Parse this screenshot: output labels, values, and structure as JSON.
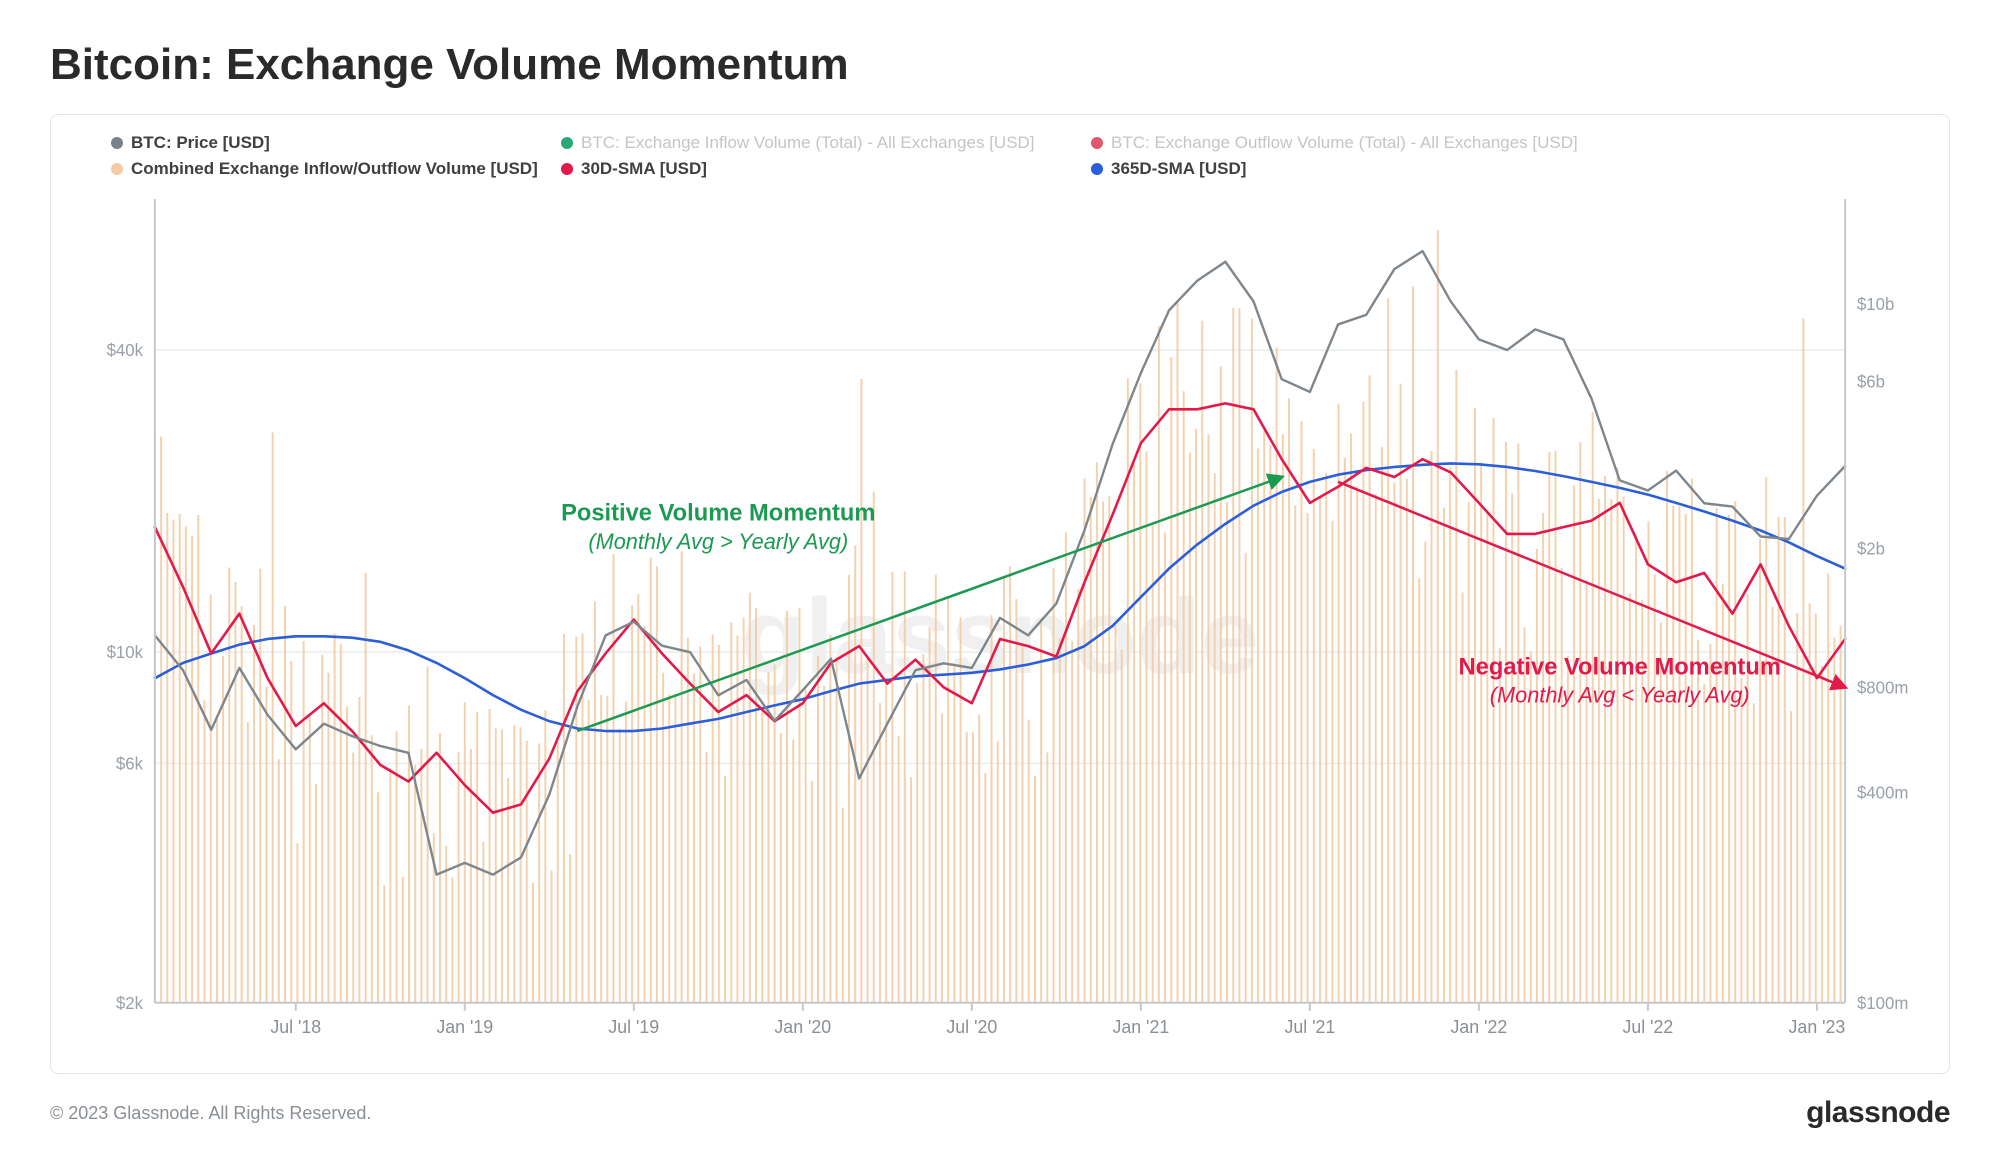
{
  "title": "Bitcoin: Exchange Volume Momentum",
  "footer_copyright": "© 2023 Glassnode. All Rights Reserved.",
  "brand": "glassnode",
  "watermark": "glassnode",
  "chart": {
    "type": "line+bar",
    "background_color": "#ffffff",
    "border_color": "#e6e6e6",
    "axis_color": "#c5c8cc",
    "grid_color": "#f0f1f2",
    "tick_label_color": "#9aa0a6",
    "x_range_months": [
      "2018-02",
      "2018-07",
      "2019-01",
      "2019-07",
      "2020-01",
      "2020-07",
      "2021-01",
      "2021-07",
      "2022-01",
      "2022-07",
      "2023-01",
      "2023-02"
    ],
    "x_ticks": [
      {
        "m": "2018-07",
        "label": "Jul '18"
      },
      {
        "m": "2019-01",
        "label": "Jan '19"
      },
      {
        "m": "2019-07",
        "label": "Jul '19"
      },
      {
        "m": "2020-01",
        "label": "Jan '20"
      },
      {
        "m": "2020-07",
        "label": "Jul '20"
      },
      {
        "m": "2021-01",
        "label": "Jan '21"
      },
      {
        "m": "2021-07",
        "label": "Jul '21"
      },
      {
        "m": "2022-01",
        "label": "Jan '22"
      },
      {
        "m": "2022-07",
        "label": "Jul '22"
      },
      {
        "m": "2023-01",
        "label": "Jan '23"
      }
    ],
    "y_left": {
      "scale": "log",
      "min": 2000,
      "max": 80000,
      "ticks": [
        {
          "v": 2000,
          "l": "$2k"
        },
        {
          "v": 6000,
          "l": "$6k"
        },
        {
          "v": 10000,
          "l": "$10k"
        },
        {
          "v": 40000,
          "l": "$40k"
        }
      ]
    },
    "y_right": {
      "scale": "log",
      "min": 100000000,
      "max": 20000000000,
      "ticks": [
        {
          "v": 100000000,
          "l": "$100m"
        },
        {
          "v": 400000000,
          "l": "$400m"
        },
        {
          "v": 800000000,
          "l": "$800m"
        },
        {
          "v": 2000000000,
          "l": "$2b"
        },
        {
          "v": 6000000000,
          "l": "$6b"
        },
        {
          "v": 10000000000,
          "l": "$10b"
        }
      ]
    },
    "legend": [
      {
        "key": "price",
        "label": "BTC: Price [USD]",
        "color": "#7a8289",
        "bold": true
      },
      {
        "key": "inflow",
        "label": "BTC: Exchange Inflow Volume (Total) - All Exchanges [USD]",
        "color": "#2aa876",
        "faded": true
      },
      {
        "key": "outflow",
        "label": "BTC: Exchange Outflow Volume (Total) - All Exchanges [USD]",
        "color": "#e0576e",
        "faded": true
      },
      {
        "key": "combined",
        "label": "Combined Exchange Inflow/Outflow Volume [USD]",
        "color": "#f5c9a1",
        "bold": true
      },
      {
        "key": "sma30",
        "label": "30D-SMA [USD]",
        "color": "#e3194b",
        "bold": true
      },
      {
        "key": "sma365",
        "label": "365D-SMA [USD]",
        "color": "#2b5fd9",
        "bold": true
      }
    ],
    "colors": {
      "price": "#7e868c",
      "bars": "#f3caa0",
      "sma30": "#e3194b",
      "sma365": "#2b5fd9"
    },
    "line_width": {
      "price": 2.4,
      "sma30": 2.6,
      "sma365": 2.6
    },
    "series": {
      "price": [
        [
          "2018-02",
          10800
        ],
        [
          "2018-03",
          9200
        ],
        [
          "2018-04",
          7000
        ],
        [
          "2018-05",
          9300
        ],
        [
          "2018-06",
          7500
        ],
        [
          "2018-07",
          6400
        ],
        [
          "2018-08",
          7200
        ],
        [
          "2018-09",
          6800
        ],
        [
          "2018-10",
          6500
        ],
        [
          "2018-11",
          6300
        ],
        [
          "2018-12",
          3600
        ],
        [
          "2019-01",
          3800
        ],
        [
          "2019-02",
          3600
        ],
        [
          "2019-03",
          3900
        ],
        [
          "2019-04",
          5200
        ],
        [
          "2019-05",
          7800
        ],
        [
          "2019-06",
          10800
        ],
        [
          "2019-07",
          11500
        ],
        [
          "2019-08",
          10300
        ],
        [
          "2019-09",
          10000
        ],
        [
          "2019-10",
          8200
        ],
        [
          "2019-11",
          8800
        ],
        [
          "2019-12",
          7300
        ],
        [
          "2020-01",
          8400
        ],
        [
          "2020-02",
          9700
        ],
        [
          "2020-03",
          5600
        ],
        [
          "2020-04",
          7200
        ],
        [
          "2020-05",
          9200
        ],
        [
          "2020-06",
          9500
        ],
        [
          "2020-07",
          9300
        ],
        [
          "2020-08",
          11700
        ],
        [
          "2020-09",
          10800
        ],
        [
          "2020-10",
          12500
        ],
        [
          "2020-11",
          17500
        ],
        [
          "2020-12",
          26000
        ],
        [
          "2021-01",
          36000
        ],
        [
          "2021-02",
          48000
        ],
        [
          "2021-03",
          55000
        ],
        [
          "2021-04",
          60000
        ],
        [
          "2021-05",
          50000
        ],
        [
          "2021-06",
          35000
        ],
        [
          "2021-07",
          33000
        ],
        [
          "2021-08",
          45000
        ],
        [
          "2021-09",
          47000
        ],
        [
          "2021-10",
          58000
        ],
        [
          "2021-11",
          63000
        ],
        [
          "2021-12",
          50000
        ],
        [
          "2022-01",
          42000
        ],
        [
          "2022-02",
          40000
        ],
        [
          "2022-03",
          44000
        ],
        [
          "2022-04",
          42000
        ],
        [
          "2022-05",
          32000
        ],
        [
          "2022-06",
          22000
        ],
        [
          "2022-07",
          21000
        ],
        [
          "2022-08",
          23000
        ],
        [
          "2022-09",
          19800
        ],
        [
          "2022-10",
          19500
        ],
        [
          "2022-11",
          17000
        ],
        [
          "2022-12",
          16800
        ],
        [
          "2023-01",
          20500
        ],
        [
          "2023-02",
          23500
        ]
      ],
      "sma30": [
        [
          "2018-02",
          2300000000
        ],
        [
          "2018-03",
          1550000000
        ],
        [
          "2018-04",
          1000000000
        ],
        [
          "2018-05",
          1300000000
        ],
        [
          "2018-06",
          850000000
        ],
        [
          "2018-07",
          620000000
        ],
        [
          "2018-08",
          720000000
        ],
        [
          "2018-09",
          600000000
        ],
        [
          "2018-10",
          480000000
        ],
        [
          "2018-11",
          430000000
        ],
        [
          "2018-12",
          520000000
        ],
        [
          "2019-01",
          420000000
        ],
        [
          "2019-02",
          350000000
        ],
        [
          "2019-03",
          370000000
        ],
        [
          "2019-04",
          500000000
        ],
        [
          "2019-05",
          780000000
        ],
        [
          "2019-06",
          1000000000
        ],
        [
          "2019-07",
          1250000000
        ],
        [
          "2019-08",
          1000000000
        ],
        [
          "2019-09",
          820000000
        ],
        [
          "2019-10",
          680000000
        ],
        [
          "2019-11",
          760000000
        ],
        [
          "2019-12",
          640000000
        ],
        [
          "2020-01",
          720000000
        ],
        [
          "2020-02",
          940000000
        ],
        [
          "2020-03",
          1050000000
        ],
        [
          "2020-04",
          820000000
        ],
        [
          "2020-05",
          960000000
        ],
        [
          "2020-06",
          800000000
        ],
        [
          "2020-07",
          720000000
        ],
        [
          "2020-08",
          1100000000
        ],
        [
          "2020-09",
          1050000000
        ],
        [
          "2020-10",
          980000000
        ],
        [
          "2020-11",
          1600000000
        ],
        [
          "2020-12",
          2500000000
        ],
        [
          "2021-01",
          4000000000
        ],
        [
          "2021-02",
          5000000000
        ],
        [
          "2021-03",
          5000000000
        ],
        [
          "2021-04",
          5200000000
        ],
        [
          "2021-05",
          5000000000
        ],
        [
          "2021-06",
          3600000000
        ],
        [
          "2021-07",
          2700000000
        ],
        [
          "2021-08",
          3000000000
        ],
        [
          "2021-09",
          3400000000
        ],
        [
          "2021-10",
          3200000000
        ],
        [
          "2021-11",
          3600000000
        ],
        [
          "2021-12",
          3300000000
        ],
        [
          "2022-01",
          2700000000
        ],
        [
          "2022-02",
          2200000000
        ],
        [
          "2022-03",
          2200000000
        ],
        [
          "2022-04",
          2300000000
        ],
        [
          "2022-05",
          2400000000
        ],
        [
          "2022-06",
          2700000000
        ],
        [
          "2022-07",
          1800000000
        ],
        [
          "2022-08",
          1600000000
        ],
        [
          "2022-09",
          1700000000
        ],
        [
          "2022-10",
          1300000000
        ],
        [
          "2022-11",
          1800000000
        ],
        [
          "2022-12",
          1200000000
        ],
        [
          "2023-01",
          850000000
        ],
        [
          "2023-02",
          1100000000
        ]
      ],
      "sma365": [
        [
          "2018-02",
          850000000
        ],
        [
          "2018-03",
          940000000
        ],
        [
          "2018-04",
          1000000000
        ],
        [
          "2018-05",
          1060000000
        ],
        [
          "2018-06",
          1100000000
        ],
        [
          "2018-07",
          1120000000
        ],
        [
          "2018-08",
          1120000000
        ],
        [
          "2018-09",
          1110000000
        ],
        [
          "2018-10",
          1080000000
        ],
        [
          "2018-11",
          1020000000
        ],
        [
          "2018-12",
          940000000
        ],
        [
          "2019-01",
          850000000
        ],
        [
          "2019-02",
          760000000
        ],
        [
          "2019-03",
          690000000
        ],
        [
          "2019-04",
          640000000
        ],
        [
          "2019-05",
          610000000
        ],
        [
          "2019-06",
          600000000
        ],
        [
          "2019-07",
          600000000
        ],
        [
          "2019-08",
          610000000
        ],
        [
          "2019-09",
          630000000
        ],
        [
          "2019-10",
          650000000
        ],
        [
          "2019-11",
          680000000
        ],
        [
          "2019-12",
          710000000
        ],
        [
          "2020-01",
          740000000
        ],
        [
          "2020-02",
          780000000
        ],
        [
          "2020-03",
          820000000
        ],
        [
          "2020-04",
          840000000
        ],
        [
          "2020-05",
          860000000
        ],
        [
          "2020-06",
          870000000
        ],
        [
          "2020-07",
          880000000
        ],
        [
          "2020-08",
          900000000
        ],
        [
          "2020-09",
          930000000
        ],
        [
          "2020-10",
          970000000
        ],
        [
          "2020-11",
          1050000000
        ],
        [
          "2020-12",
          1200000000
        ],
        [
          "2021-01",
          1450000000
        ],
        [
          "2021-02",
          1750000000
        ],
        [
          "2021-03",
          2050000000
        ],
        [
          "2021-04",
          2350000000
        ],
        [
          "2021-05",
          2650000000
        ],
        [
          "2021-06",
          2900000000
        ],
        [
          "2021-07",
          3100000000
        ],
        [
          "2021-08",
          3250000000
        ],
        [
          "2021-09",
          3350000000
        ],
        [
          "2021-10",
          3420000000
        ],
        [
          "2021-11",
          3470000000
        ],
        [
          "2021-12",
          3500000000
        ],
        [
          "2022-01",
          3480000000
        ],
        [
          "2022-02",
          3420000000
        ],
        [
          "2022-03",
          3330000000
        ],
        [
          "2022-04",
          3220000000
        ],
        [
          "2022-05",
          3100000000
        ],
        [
          "2022-06",
          2980000000
        ],
        [
          "2022-07",
          2850000000
        ],
        [
          "2022-08",
          2700000000
        ],
        [
          "2022-09",
          2550000000
        ],
        [
          "2022-10",
          2400000000
        ],
        [
          "2022-11",
          2250000000
        ],
        [
          "2022-12",
          2080000000
        ],
        [
          "2023-01",
          1900000000
        ],
        [
          "2023-02",
          1750000000
        ]
      ]
    },
    "bars_seed": 42,
    "annotations": {
      "positive": {
        "title": "Positive Volume Momentum",
        "subtitle": "(Monthly Avg > Yearly Avg)",
        "color": "#1c9a52",
        "arrow_from": [
          "2019-05",
          600000000
        ],
        "arrow_to": [
          "2021-06",
          3200000000
        ],
        "label_anchor": [
          "2019-10",
          2400000000
        ]
      },
      "negative": {
        "title": "Negative Volume Momentum",
        "subtitle": "(Monthly Avg < Yearly Avg)",
        "color": "#e3194b",
        "arrow_from": [
          "2021-08",
          3100000000
        ],
        "arrow_to": [
          "2023-02",
          800000000
        ],
        "label_anchor": [
          "2022-06",
          870000000
        ]
      }
    }
  }
}
